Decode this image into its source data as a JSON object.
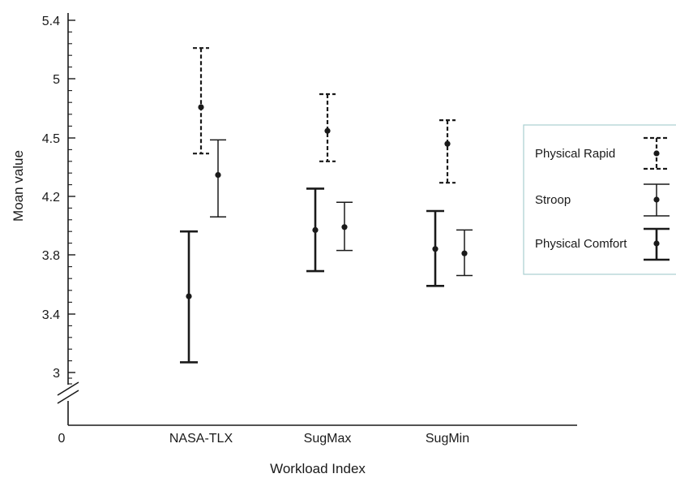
{
  "chart_data": {
    "type": "errorbar",
    "xlabel": "Workload Index",
    "ylabel": "Moan value",
    "origin_label": "0",
    "categories": [
      "NASA-TLX",
      "SugMax",
      "SugMin"
    ],
    "yticks": [
      {
        "value": 3,
        "label": "3"
      },
      {
        "value": 3.4,
        "label": "3.4"
      },
      {
        "value": 3.8,
        "label": "3.8"
      },
      {
        "value": 4.2,
        "label": "4.2"
      },
      {
        "value": 4.5,
        "label": "4.5"
      },
      {
        "value": 5,
        "label": "5"
      },
      {
        "value": 5.4,
        "label": "5.4"
      }
    ],
    "axis_break": true,
    "legend_position": "right",
    "series": [
      {
        "name": "Physical Comfort",
        "style": "solid-thick",
        "points": [
          {
            "category": "NASA-TLX",
            "mean": 3.52,
            "lower": 3.07,
            "upper": 3.96
          },
          {
            "category": "SugMax",
            "mean": 3.97,
            "lower": 3.69,
            "upper": 4.24
          },
          {
            "category": "SugMin",
            "mean": 3.84,
            "lower": 3.59,
            "upper": 4.1
          }
        ]
      },
      {
        "name": "Stroop",
        "style": "solid-thin",
        "points": [
          {
            "category": "NASA-TLX",
            "mean": 4.31,
            "lower": 4.06,
            "upper": 4.49
          },
          {
            "category": "SugMax",
            "mean": 3.99,
            "lower": 3.83,
            "upper": 4.16
          },
          {
            "category": "SugMin",
            "mean": 3.81,
            "lower": 3.66,
            "upper": 3.97
          }
        ]
      },
      {
        "name": "Physical Rapid",
        "style": "dashed",
        "points": [
          {
            "category": "NASA-TLX",
            "mean": 4.76,
            "lower": 4.42,
            "upper": 5.21
          },
          {
            "category": "SugMax",
            "mean": 4.56,
            "lower": 4.38,
            "upper": 4.87
          },
          {
            "category": "SugMin",
            "mean": 4.47,
            "lower": 4.27,
            "upper": 4.65
          }
        ]
      }
    ],
    "legend_order": [
      "Physical Rapid",
      "Stroop",
      "Physical Comfort"
    ]
  },
  "colors": {
    "line": "#1a1a1a",
    "legend_border": "#a9cfd0"
  }
}
